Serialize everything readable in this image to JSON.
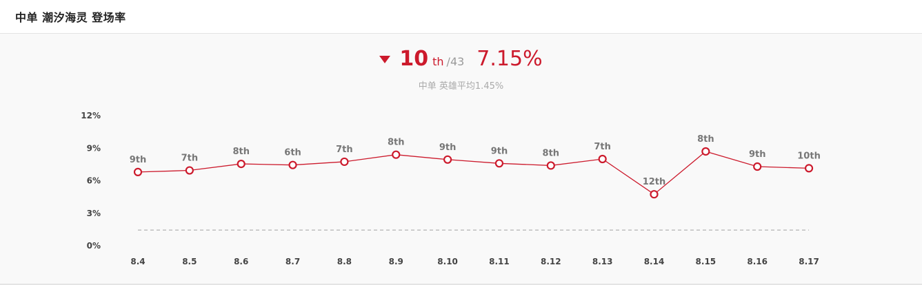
{
  "header": {
    "title": "中单 潮汐海灵 登场率"
  },
  "summary": {
    "trend": "down",
    "rank": "10",
    "rank_suffix": "th",
    "rank_total": "/43",
    "rate": "7.15%",
    "average_text": "中单 英雄平均1.45%"
  },
  "colors": {
    "accent": "#cc1a2c",
    "average_line": "#aaaaaa",
    "marker_fill": "#ffffff"
  },
  "chart_data": {
    "type": "line",
    "categories": [
      "8.4",
      "8.5",
      "8.6",
      "8.7",
      "8.8",
      "8.9",
      "8.10",
      "8.11",
      "8.12",
      "8.13",
      "8.14",
      "8.15",
      "8.16",
      "8.17"
    ],
    "series": [
      {
        "values": [
          6.8,
          6.95,
          7.55,
          7.45,
          7.75,
          8.4,
          7.95,
          7.6,
          7.4,
          8.0,
          4.75,
          8.7,
          7.3,
          7.15
        ],
        "point_labels": [
          "9th",
          "7th",
          "8th",
          "6th",
          "7th",
          "8th",
          "9th",
          "9th",
          "8th",
          "7th",
          "12th",
          "8th",
          "9th",
          "10th"
        ]
      }
    ],
    "reference_line": {
      "value": 1.45,
      "style": "dashed"
    },
    "y_ticks": [
      "0%",
      "3%",
      "6%",
      "9%",
      "12%"
    ],
    "ylim": [
      0,
      12
    ],
    "grid": false
  }
}
